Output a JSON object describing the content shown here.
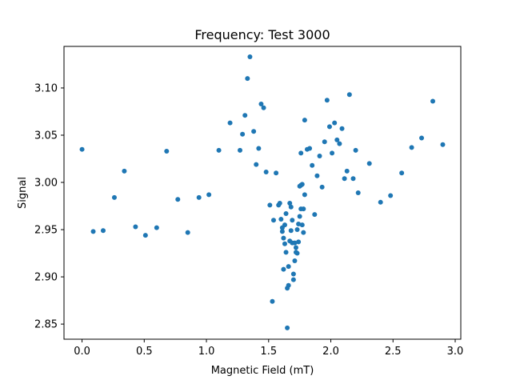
{
  "chart_data": {
    "type": "scatter",
    "title": "Frequency: Test 3000",
    "xlabel": "Magnetic Field (mT)",
    "ylabel": "Signal",
    "xlim": [
      -0.145,
      3.045
    ],
    "ylim": [
      2.834,
      3.144
    ],
    "xticks": [
      0.0,
      0.5,
      1.0,
      1.5,
      2.0,
      2.5,
      3.0
    ],
    "xtick_labels": [
      "0.0",
      "0.5",
      "1.0",
      "1.5",
      "2.0",
      "2.5",
      "3.0"
    ],
    "yticks": [
      2.85,
      2.9,
      2.95,
      3.0,
      3.05,
      3.1
    ],
    "ytick_labels": [
      "2.85",
      "2.90",
      "2.95",
      "3.00",
      "3.05",
      "3.10"
    ],
    "grid": false,
    "marker_color": "#1f77b4",
    "series": [
      {
        "points": [
          [
            0.0,
            3.035
          ],
          [
            0.09,
            2.948
          ],
          [
            0.17,
            2.949
          ],
          [
            0.26,
            2.984
          ],
          [
            0.34,
            3.012
          ],
          [
            0.43,
            2.953
          ],
          [
            0.51,
            2.944
          ],
          [
            0.6,
            2.952
          ],
          [
            0.68,
            3.033
          ],
          [
            0.77,
            2.982
          ],
          [
            0.85,
            2.947
          ],
          [
            0.94,
            2.984
          ],
          [
            1.02,
            2.987
          ],
          [
            1.1,
            3.034
          ],
          [
            1.19,
            3.063
          ],
          [
            1.27,
            3.034
          ],
          [
            1.29,
            3.051
          ],
          [
            1.31,
            3.071
          ],
          [
            1.33,
            3.11
          ],
          [
            1.35,
            3.133
          ],
          [
            1.38,
            3.054
          ],
          [
            1.4,
            3.019
          ],
          [
            1.42,
            3.036
          ],
          [
            1.44,
            3.083
          ],
          [
            1.46,
            3.079
          ],
          [
            1.48,
            3.011
          ],
          [
            1.51,
            2.976
          ],
          [
            1.53,
            2.874
          ],
          [
            1.54,
            2.96
          ],
          [
            1.56,
            3.01
          ],
          [
            1.58,
            2.976
          ],
          [
            1.59,
            2.978
          ],
          [
            1.6,
            2.961
          ],
          [
            1.61,
            2.952
          ],
          [
            1.61,
            2.948
          ],
          [
            1.62,
            2.941
          ],
          [
            1.62,
            2.908
          ],
          [
            1.63,
            2.935
          ],
          [
            1.63,
            2.955
          ],
          [
            1.64,
            2.967
          ],
          [
            1.64,
            2.926
          ],
          [
            1.65,
            2.846
          ],
          [
            1.65,
            2.888
          ],
          [
            1.66,
            2.891
          ],
          [
            1.66,
            2.911
          ],
          [
            1.67,
            2.938
          ],
          [
            1.67,
            2.978
          ],
          [
            1.68,
            2.949
          ],
          [
            1.68,
            2.974
          ],
          [
            1.69,
            2.96
          ],
          [
            1.69,
            2.936
          ],
          [
            1.7,
            2.903
          ],
          [
            1.7,
            2.897
          ],
          [
            1.71,
            2.917
          ],
          [
            1.71,
            2.936
          ],
          [
            1.72,
            2.931
          ],
          [
            1.72,
            2.926
          ],
          [
            1.73,
            2.95
          ],
          [
            1.73,
            2.925
          ],
          [
            1.74,
            2.937
          ],
          [
            1.74,
            2.956
          ],
          [
            1.75,
            2.964
          ],
          [
            1.75,
            2.996
          ],
          [
            1.76,
            2.997
          ],
          [
            1.76,
            2.972
          ],
          [
            1.77,
            2.998
          ],
          [
            1.77,
            2.955
          ],
          [
            1.78,
            2.972
          ],
          [
            1.78,
            2.947
          ],
          [
            1.79,
            2.987
          ],
          [
            1.76,
            3.031
          ],
          [
            1.79,
            3.066
          ],
          [
            1.81,
            3.035
          ],
          [
            1.83,
            3.036
          ],
          [
            1.85,
            3.018
          ],
          [
            1.87,
            2.966
          ],
          [
            1.89,
            3.007
          ],
          [
            1.91,
            3.028
          ],
          [
            1.93,
            2.995
          ],
          [
            1.95,
            3.043
          ],
          [
            1.97,
            3.087
          ],
          [
            1.99,
            3.059
          ],
          [
            2.01,
            3.031
          ],
          [
            2.03,
            3.063
          ],
          [
            2.05,
            3.045
          ],
          [
            2.07,
            3.041
          ],
          [
            2.09,
            3.057
          ],
          [
            2.11,
            3.004
          ],
          [
            2.13,
            3.012
          ],
          [
            2.15,
            3.093
          ],
          [
            2.18,
            3.004
          ],
          [
            2.2,
            3.034
          ],
          [
            2.22,
            2.989
          ],
          [
            2.31,
            3.02
          ],
          [
            2.4,
            2.979
          ],
          [
            2.48,
            2.986
          ],
          [
            2.57,
            3.01
          ],
          [
            2.65,
            3.037
          ],
          [
            2.73,
            3.047
          ],
          [
            2.82,
            3.086
          ],
          [
            2.9,
            3.04
          ]
        ]
      }
    ]
  }
}
